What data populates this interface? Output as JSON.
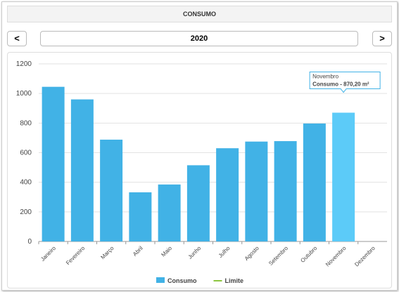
{
  "header": {
    "title": "CONSUMO"
  },
  "nav": {
    "prev": "<",
    "year": "2020",
    "next": ">"
  },
  "chart_data": {
    "type": "bar",
    "categories": [
      "Janeiro",
      "Fevereiro",
      "Março",
      "Abril",
      "Maio",
      "Junho",
      "Julho",
      "Agosto",
      "Setembro",
      "Outubro",
      "Novembro",
      "Dezembro"
    ],
    "series": [
      {
        "name": "Consumo",
        "color": "#41b2e6",
        "values": [
          1045,
          960,
          688,
          332,
          385,
          515,
          630,
          675,
          678,
          797,
          870.2,
          null
        ]
      },
      {
        "name": "Limite",
        "color": "#8cc63f",
        "values": [
          null,
          null,
          null,
          null,
          null,
          null,
          null,
          null,
          null,
          null,
          null,
          null
        ]
      }
    ],
    "highlight": {
      "index": 10,
      "color": "#5ccbf8"
    },
    "tooltip": {
      "title": "Novembro",
      "text": "Consumo - 870,20 m²"
    },
    "ylim": [
      0,
      1200
    ],
    "yticks": [
      0,
      200,
      400,
      600,
      800,
      1000,
      1200
    ],
    "grid": true,
    "legend": "bottom"
  }
}
